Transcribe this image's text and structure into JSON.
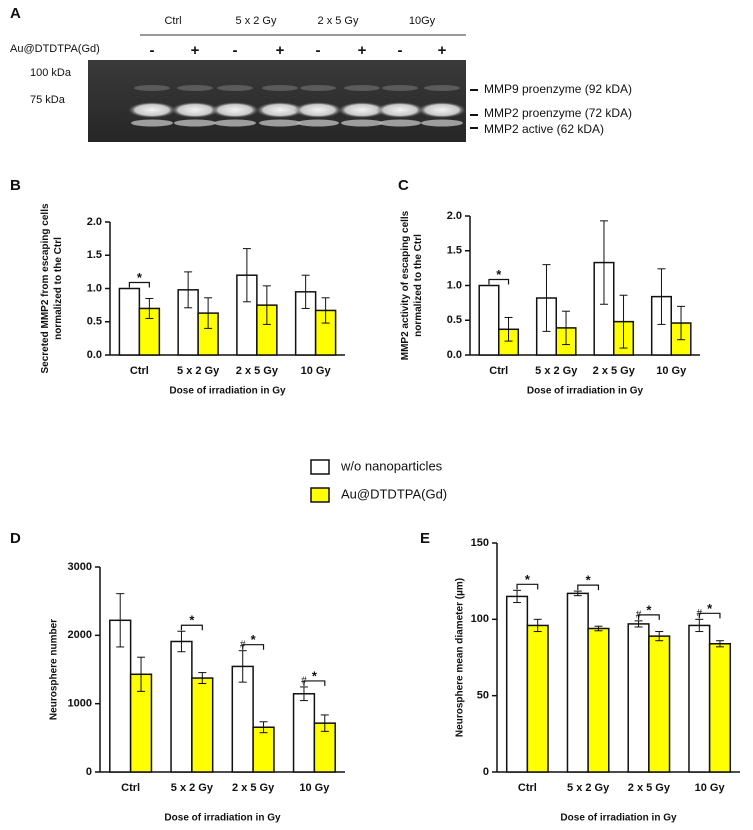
{
  "gel": {
    "panel": "A",
    "groups": [
      "Ctrl",
      "5 x 2 Gy",
      "2 x 5 Gy",
      "10Gy"
    ],
    "treatment": "Au@DTDTPA(Gd)",
    "lanes": [
      "-",
      "+",
      "-",
      "+",
      "-",
      "+",
      "-",
      "+"
    ],
    "markers": [
      "100 kDa",
      "75 kDa"
    ],
    "bands": [
      "MMP9 proenzyme (92 kDA)",
      "MMP2 proenzyme (72 kDA)",
      "MMP2 active (62 kDA)"
    ]
  },
  "chart_data": [
    {
      "type": "bar",
      "panel": "B",
      "ylabel": [
        "Secreted MMP2 from escaping cells",
        "normalized to the Ctrl"
      ],
      "xlabel": "Dose of irradiation in Gy",
      "categories": [
        "Ctrl",
        "5 x 2 Gy",
        "2 x 5 Gy",
        "10 Gy"
      ],
      "series": [
        {
          "name": "w/o nanoparticles",
          "color": "#ffffff",
          "values": [
            1.0,
            0.98,
            1.2,
            0.95
          ],
          "errors": [
            0,
            0.27,
            0.4,
            0.25
          ]
        },
        {
          "name": "Au@DTDTPA(Gd)",
          "color": "#ffff00",
          "values": [
            0.7,
            0.63,
            0.75,
            0.67
          ],
          "errors": [
            0.15,
            0.23,
            0.29,
            0.19
          ]
        }
      ],
      "annotations": [
        "*",
        null,
        null,
        null
      ],
      "ylim": [
        0,
        2
      ],
      "yticks": [
        {
          "value": 0,
          "label": "0.0"
        },
        0.5,
        {
          "value": 1,
          "label": "1.0"
        },
        1.5,
        {
          "value": 2,
          "label": "2.0"
        }
      ]
    },
    {
      "type": "bar",
      "panel": "C",
      "ylabel": [
        "MMP2 activity of escaping cells",
        "normalized to the Ctrl"
      ],
      "xlabel": "Dose of irradiation in Gy",
      "categories": [
        "Ctrl",
        "5 x 2 Gy",
        "2 x 5 Gy",
        "10 Gy"
      ],
      "series": [
        {
          "name": "w/o nanoparticles",
          "color": "#ffffff",
          "values": [
            1.0,
            0.82,
            1.33,
            0.84
          ],
          "errors": [
            0,
            0.48,
            0.6,
            0.4
          ]
        },
        {
          "name": "Au@DTDTPA(Gd)",
          "color": "#ffff00",
          "values": [
            0.37,
            0.39,
            0.48,
            0.46
          ],
          "errors": [
            0.17,
            0.24,
            0.38,
            0.24
          ]
        }
      ],
      "annotations": [
        "*",
        null,
        null,
        null
      ],
      "ylim": [
        0,
        2
      ],
      "yticks": [
        {
          "value": 0,
          "label": "0.0"
        },
        0.5,
        {
          "value": 1,
          "label": "1.0"
        },
        1.5,
        {
          "value": 2,
          "label": "2.0"
        }
      ]
    },
    {
      "type": "bar",
      "panel": "D",
      "ylabel": [
        "Neurosphere number"
      ],
      "xlabel": "Dose of irradiation in Gy",
      "categories": [
        "Ctrl",
        "5 x 2 Gy",
        "2 x 5 Gy",
        "10 Gy"
      ],
      "series": [
        {
          "name": "w/o nanoparticles",
          "color": "#ffffff",
          "values": [
            2220,
            1910,
            1545,
            1145
          ],
          "errors": [
            390,
            150,
            230,
            100
          ],
          "marks": [
            null,
            null,
            "#",
            "#"
          ]
        },
        {
          "name": "Au@DTDTPA(Gd)",
          "color": "#ffff00",
          "values": [
            1430,
            1375,
            655,
            715
          ],
          "errors": [
            250,
            80,
            80,
            120
          ]
        }
      ],
      "annotations": [
        null,
        "*",
        "*",
        "*"
      ],
      "ylim": [
        0,
        3000
      ],
      "yticks": [
        0,
        1000,
        2000,
        3000
      ]
    },
    {
      "type": "bar",
      "panel": "E",
      "ylabel": [
        "Neurosphere mean diameter (µm)"
      ],
      "xlabel": "Dose of irradiation in Gy",
      "categories": [
        "Ctrl",
        "5 x 2 Gy",
        "2 x 5 Gy",
        "10 Gy"
      ],
      "series": [
        {
          "name": "w/o nanoparticles",
          "color": "#ffffff",
          "values": [
            115,
            117,
            97,
            96
          ],
          "errors": [
            4,
            1.5,
            2,
            4
          ],
          "marks": [
            null,
            null,
            "#",
            "#"
          ]
        },
        {
          "name": "Au@DTDTPA(Gd)",
          "color": "#ffff00",
          "values": [
            96,
            94,
            89,
            84
          ],
          "errors": [
            4,
            1.5,
            3,
            2
          ]
        }
      ],
      "annotations": [
        "*",
        "*",
        "*",
        "*"
      ],
      "ylim": [
        0,
        150
      ],
      "yticks": [
        0,
        50,
        100,
        150
      ]
    }
  ]
}
